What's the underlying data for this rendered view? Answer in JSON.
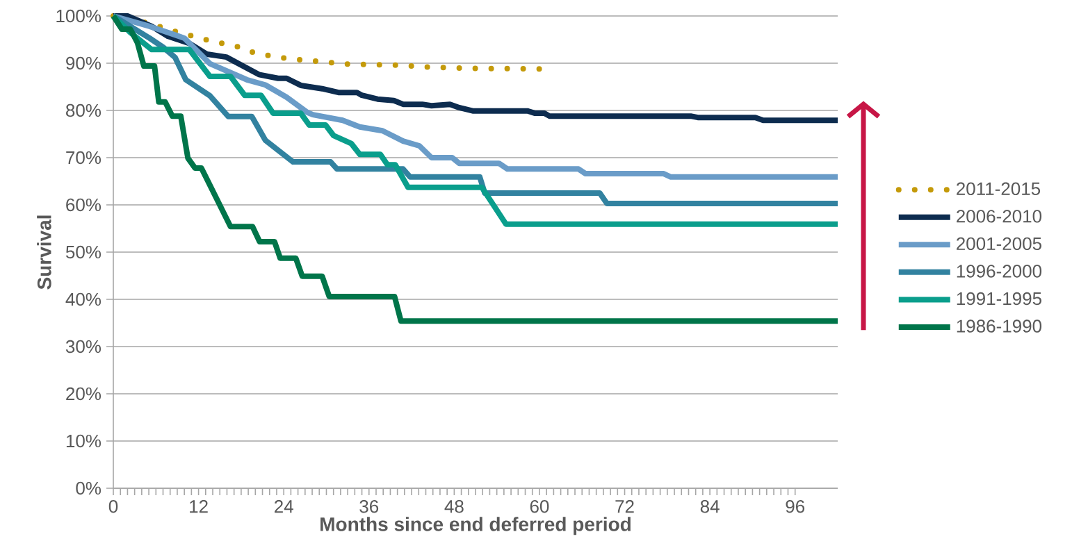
{
  "chart_data": {
    "type": "line",
    "xlabel": "Months since end deferred period",
    "ylabel": "Survival",
    "xlim": [
      0,
      102
    ],
    "ylim": [
      0,
      100
    ],
    "xticks": [
      0,
      12,
      24,
      36,
      48,
      60,
      72,
      84,
      96
    ],
    "yticks": [
      {
        "value": 0,
        "label": "0%"
      },
      {
        "value": 10,
        "label": "10%"
      },
      {
        "value": 20,
        "label": "20%"
      },
      {
        "value": 30,
        "label": "30%"
      },
      {
        "value": 40,
        "label": "40%"
      },
      {
        "value": 50,
        "label": "50%"
      },
      {
        "value": 60,
        "label": "60%"
      },
      {
        "value": 70,
        "label": "70%"
      },
      {
        "value": 80,
        "label": "80%"
      },
      {
        "value": 90,
        "label": "90%"
      },
      {
        "value": 100,
        "label": "100%"
      }
    ],
    "grid": "y",
    "legend": "right",
    "series": [
      {
        "name": "2011-2015",
        "color": "#c49a0a",
        "line_style": "dotted",
        "x": [
          0,
          4.9,
          9.2,
          13.5,
          17.8,
          20,
          24.4,
          28.8,
          33,
          40,
          44,
          50,
          60
        ],
        "values": [
          100,
          98.5,
          96.5,
          94.8,
          93.4,
          92.1,
          91,
          90.4,
          89.8,
          89.6,
          89.2,
          88.9,
          88.8
        ]
      },
      {
        "name": "2006-2010",
        "color": "#0d2c4f",
        "x": [
          0,
          2,
          5.4,
          7.7,
          10.7,
          13.2,
          15.9,
          20.5,
          23.2,
          24.4,
          26.4,
          29.4,
          31.7,
          34.3,
          35,
          37.2,
          39.5,
          40.8,
          43.5,
          44.8,
          47.4,
          48.7,
          50.6,
          58.3,
          59.4,
          60.7,
          61.4,
          81.3,
          82.3,
          90.4,
          91.5,
          102
        ],
        "values": [
          100,
          100,
          97.8,
          95.7,
          94.2,
          91.9,
          91.3,
          87.6,
          86.8,
          86.8,
          85.3,
          84.6,
          83.8,
          83.8,
          83.2,
          82.4,
          82.1,
          81.3,
          81.3,
          81,
          81.3,
          80.6,
          79.9,
          79.9,
          79.4,
          79.4,
          78.8,
          78.8,
          78.5,
          78.5,
          77.9,
          77.9
        ]
      },
      {
        "name": "2001-2005",
        "color": "#6a9cc8",
        "x": [
          0,
          5.1,
          7.1,
          10,
          13.6,
          18.8,
          21.4,
          24.4,
          27.3,
          28.1,
          32.3,
          34.7,
          37.9,
          40.8,
          43.1,
          44.8,
          47.7,
          48.7,
          54.3,
          55.5,
          65.5,
          66.5,
          77.5,
          78.5,
          102
        ],
        "values": [
          100,
          97.8,
          96.8,
          95.3,
          89.9,
          86.5,
          85.4,
          82.8,
          79.6,
          79.1,
          77.9,
          76.5,
          75.7,
          73.5,
          72.5,
          70,
          70,
          68.8,
          68.8,
          67.6,
          67.6,
          66.6,
          66.6,
          65.9,
          65.9
        ]
      },
      {
        "name": "1996-2000",
        "color": "#3282a0",
        "x": [
          0,
          5.1,
          7,
          8.7,
          10.2,
          13.6,
          16.2,
          19.5,
          21.4,
          25.3,
          30.6,
          31.5,
          40.8,
          41.8,
          51.6,
          52.3,
          68.5,
          69.5,
          102
        ],
        "values": [
          100,
          95.3,
          93.4,
          91.2,
          86.5,
          83.1,
          78.7,
          78.7,
          73.7,
          69.1,
          69.1,
          67.6,
          67.6,
          65.9,
          65.9,
          62.5,
          62.5,
          60.3,
          60.3
        ]
      },
      {
        "name": "1991-1995",
        "color": "#0a9e8c",
        "x": [
          0,
          2.4,
          5.4,
          10.7,
          13.6,
          16.5,
          18.5,
          20.8,
          22.5,
          26.4,
          27.6,
          29.9,
          31,
          33.5,
          34.7,
          37.6,
          38.6,
          39.7,
          41.5,
          51.9,
          55.3,
          102
        ],
        "values": [
          100,
          96.5,
          92.9,
          92.9,
          87.2,
          87.2,
          83.2,
          83.2,
          79.4,
          79.4,
          76.9,
          76.9,
          74.7,
          73,
          70.7,
          70.7,
          68.5,
          68.5,
          63.7,
          63.7,
          55.9,
          55.9
        ]
      },
      {
        "name": "1986-1990",
        "color": "#00754a",
        "x": [
          0,
          1.2,
          2.4,
          3.4,
          4.3,
          5.8,
          6.4,
          7.3,
          8.3,
          9.5,
          10.5,
          11.5,
          12.4,
          16.5,
          19.6,
          20.6,
          22.7,
          23.5,
          25.7,
          26.6,
          29.4,
          30.4,
          39.6,
          40.5,
          102
        ],
        "values": [
          100,
          97.2,
          97.2,
          94.3,
          89.4,
          89.4,
          81.8,
          81.8,
          78.8,
          78.8,
          69.9,
          67.8,
          67.8,
          55.4,
          55.4,
          52.2,
          52.2,
          48.7,
          48.7,
          44.9,
          44.9,
          40.6,
          40.6,
          35.4,
          35.4
        ]
      }
    ]
  }
}
